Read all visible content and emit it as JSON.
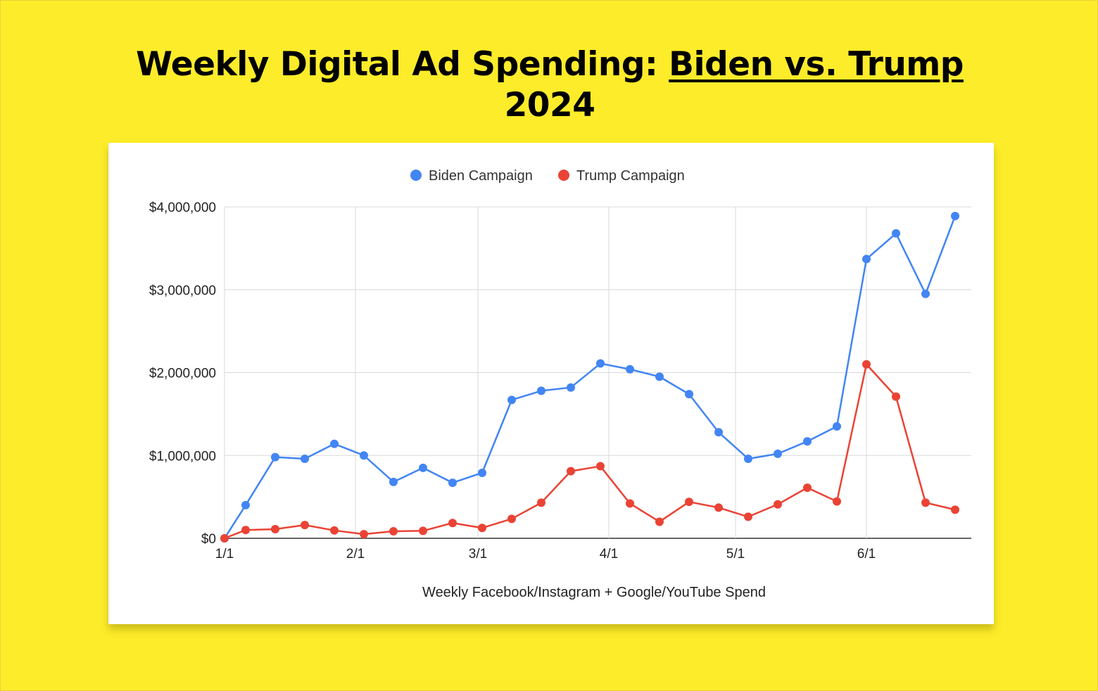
{
  "headline": {
    "prefix": "Weekly Digital Ad Spending: ",
    "highlight": "Biden vs. Trump",
    "line2": "2024"
  },
  "colors": {
    "background": "#FDEC2A",
    "biden": "#4285F4",
    "trump": "#EA4335"
  },
  "chart_data": {
    "type": "line",
    "title": "Weekly Digital Ad Spending: Biden vs. Trump 2024",
    "xlabel": "Weekly Facebook/Instagram + Google/YouTube Spend",
    "ylabel": "",
    "ylim": [
      0,
      4000000
    ],
    "y_ticks": [
      0,
      1000000,
      2000000,
      3000000,
      4000000
    ],
    "y_tick_labels": [
      "$0",
      "$1,000,000",
      "$2,000,000",
      "$3,000,000",
      "$4,000,000"
    ],
    "x_tick_days": [
      0,
      31,
      60,
      91,
      121,
      152
    ],
    "x_tick_labels": [
      "1/1",
      "2/1",
      "3/1",
      "4/1",
      "5/1",
      "6/1"
    ],
    "x_range_days": [
      0,
      174
    ],
    "legend_position": "top-center",
    "grid": true,
    "x": [
      0,
      5,
      12,
      19,
      26,
      33,
      40,
      47,
      54,
      61,
      68,
      75,
      82,
      89,
      96,
      103,
      110,
      117,
      124,
      131,
      138,
      145,
      152,
      159,
      166,
      173
    ],
    "series": [
      {
        "name": "Biden Campaign",
        "color": "#4285F4",
        "values": [
          0,
          400000,
          980000,
          960000,
          1140000,
          1000000,
          680000,
          850000,
          670000,
          790000,
          1670000,
          1780000,
          1820000,
          2110000,
          2040000,
          1950000,
          1740000,
          1280000,
          960000,
          1020000,
          1170000,
          1350000,
          3370000,
          3680000,
          2950000,
          3890000
        ]
      },
      {
        "name": "Trump Campaign",
        "color": "#EA4335",
        "values": [
          0,
          100000,
          110000,
          160000,
          95000,
          50000,
          85000,
          90000,
          185000,
          125000,
          235000,
          430000,
          810000,
          870000,
          420000,
          200000,
          440000,
          370000,
          260000,
          410000,
          610000,
          445000,
          2100000,
          1710000,
          430000,
          345000
        ]
      }
    ]
  }
}
